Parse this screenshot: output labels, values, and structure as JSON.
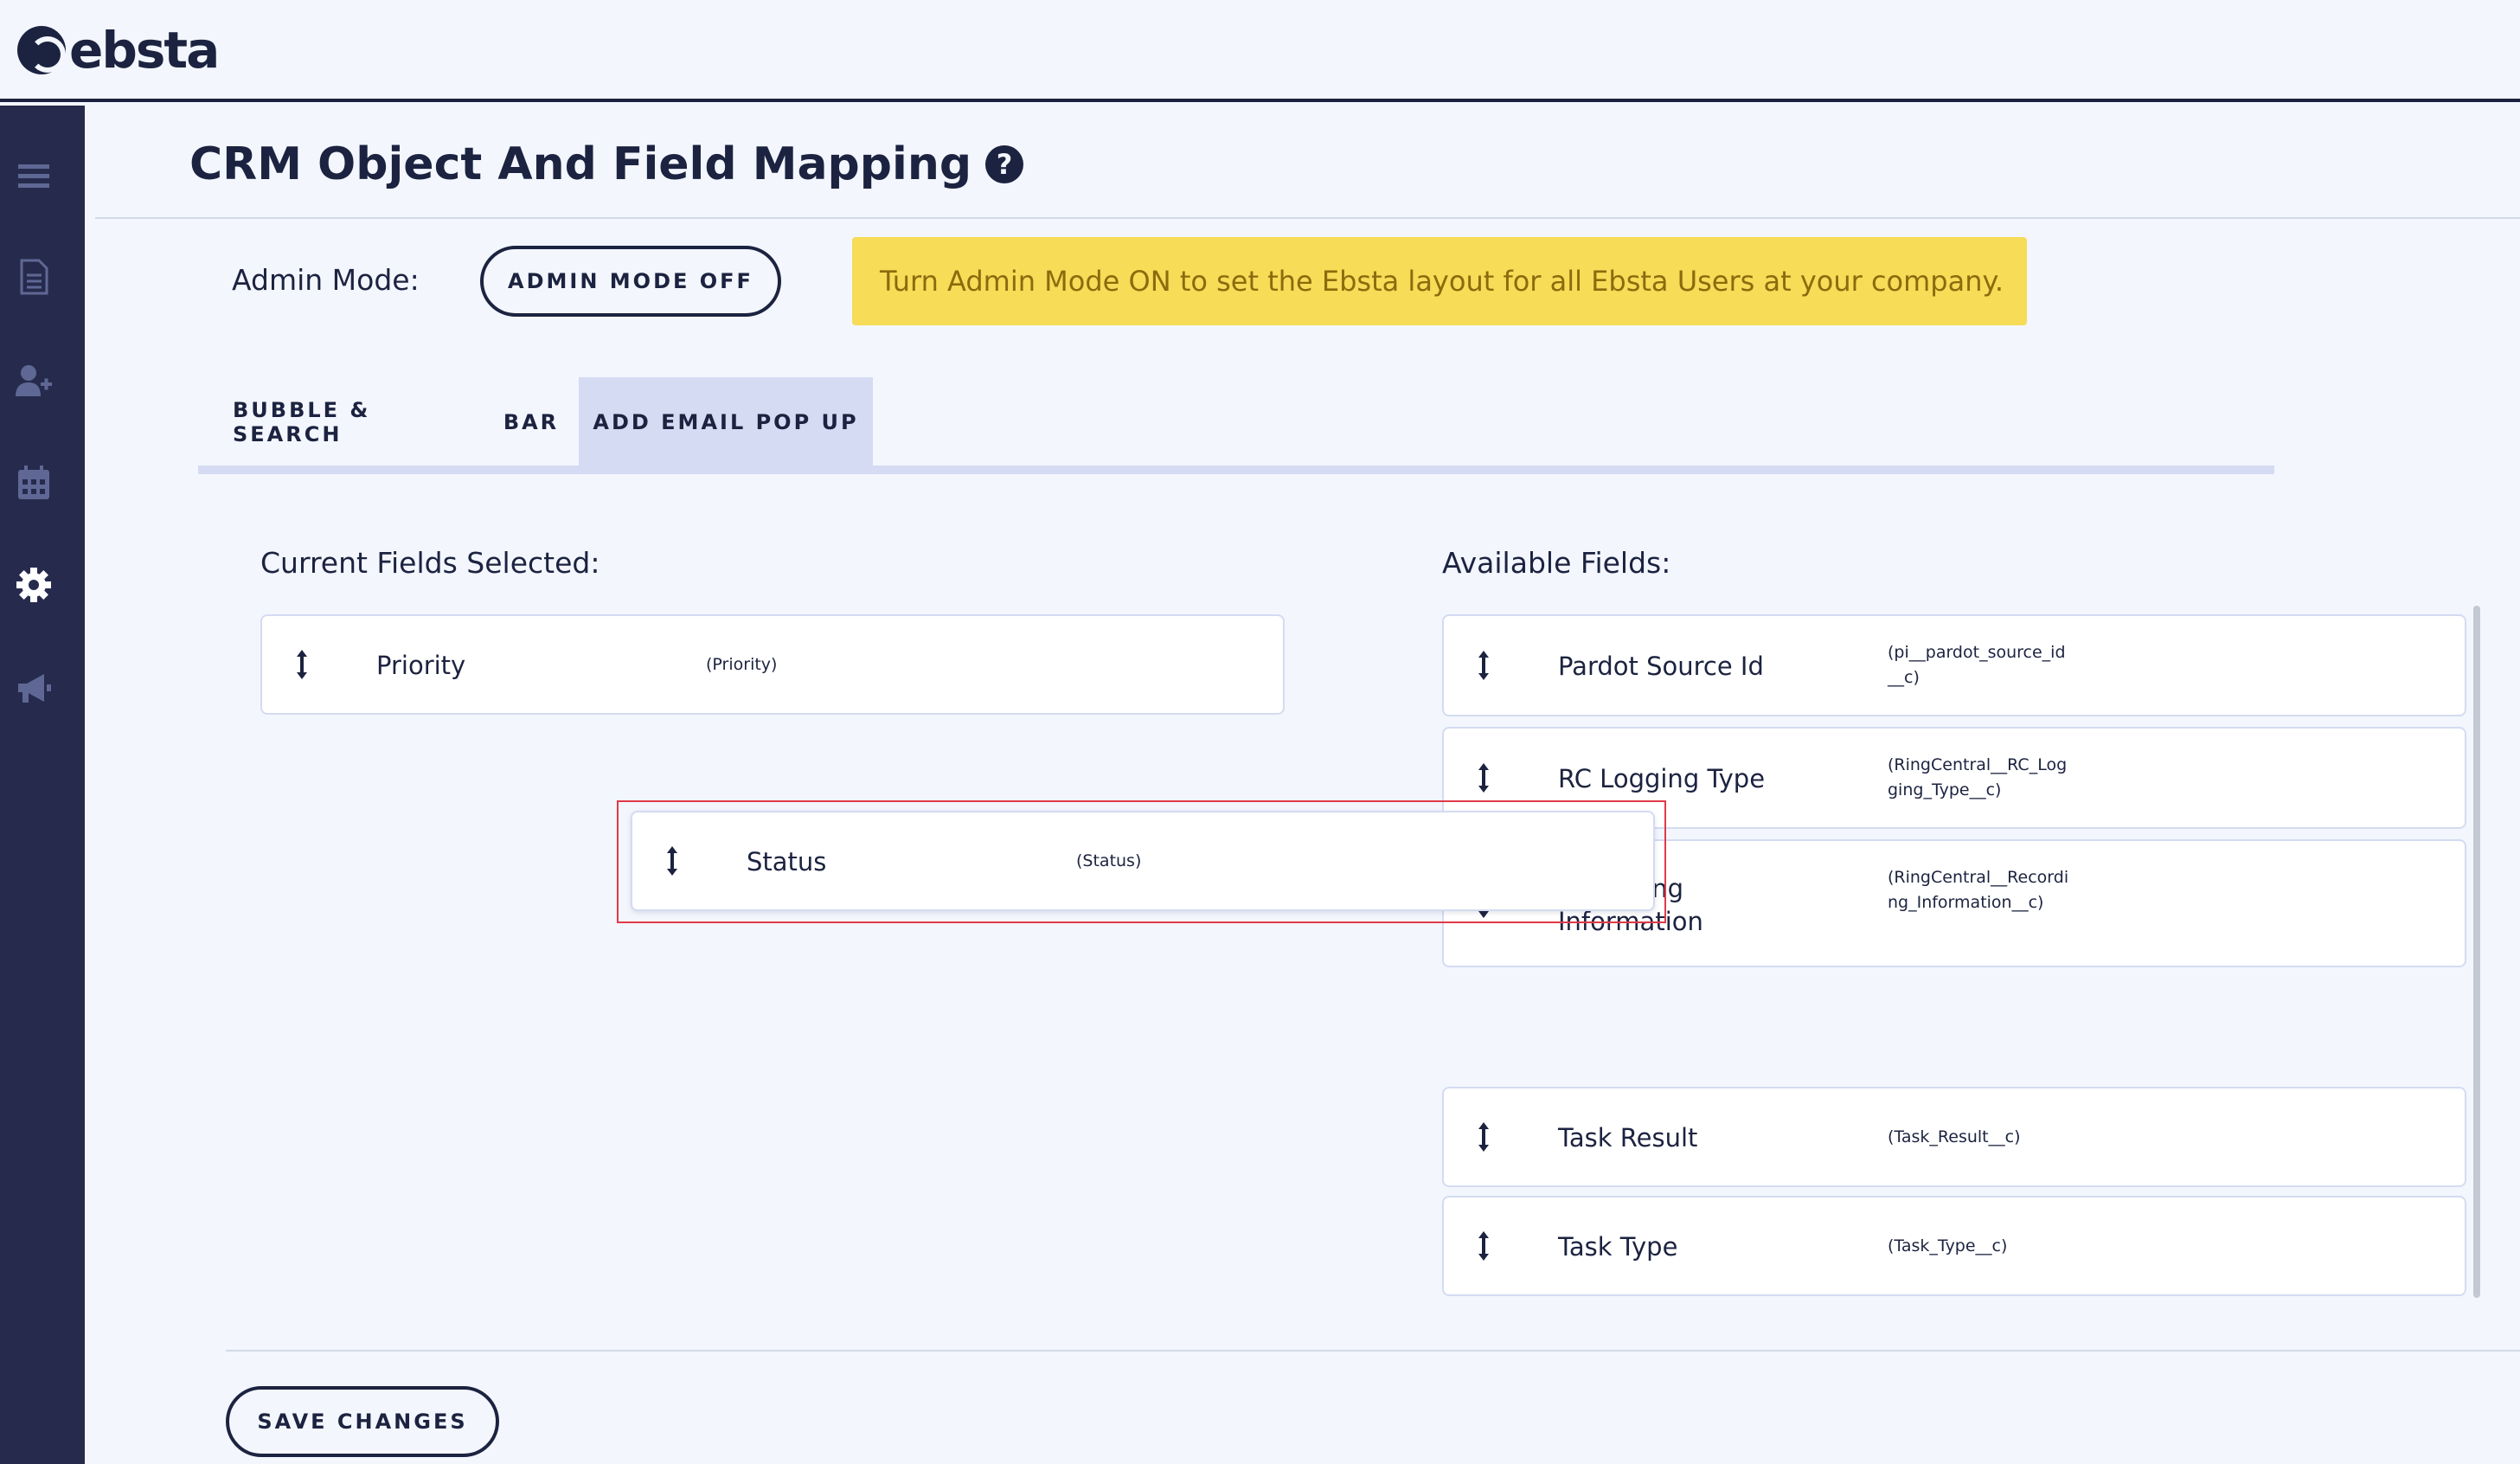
{
  "app": {
    "logo_text": "ebsta"
  },
  "sidebar": {
    "items": [
      {
        "icon": "menu-icon"
      },
      {
        "icon": "document-icon"
      },
      {
        "icon": "add-user-icon"
      },
      {
        "icon": "calendar-icon"
      },
      {
        "icon": "gear-icon"
      },
      {
        "icon": "megaphone-icon"
      }
    ]
  },
  "header": {
    "title": "CRM Object And Field Mapping",
    "help_glyph": "?"
  },
  "admin": {
    "label": "Admin Mode:",
    "button_label": "ADMIN MODE OFF",
    "notice": "Turn Admin Mode ON to set the Ebsta layout for all Ebsta Users at your company."
  },
  "tabs": [
    {
      "label": "BUBBLE & SEARCH",
      "active": false
    },
    {
      "label": "BAR",
      "active": false
    },
    {
      "label": "ADD EMAIL POP UP",
      "active": true
    }
  ],
  "current_fields": {
    "label": "Current Fields Selected:",
    "items": [
      {
        "name": "Priority",
        "api": "(Priority)"
      }
    ]
  },
  "dragging_field": {
    "name": "Status",
    "api": "(Status)"
  },
  "available_fields": {
    "label": "Available Fields:",
    "items": [
      {
        "name": "Pardot Source Id",
        "api": "(pi__pardot_source_id__c)"
      },
      {
        "name": "RC Logging Type",
        "api": "(RingCentral__RC_Logging_Type__c)"
      },
      {
        "name": "Recording Information",
        "api": "(RingCentral__Recording_Information__c)"
      },
      {
        "name": "Task Result",
        "api": "(Task_Result__c)"
      },
      {
        "name": "Task Type",
        "api": "(Task_Type__c)"
      }
    ]
  },
  "footer": {
    "save_label": "SAVE CHANGES"
  },
  "colors": {
    "navy": "#1c2340",
    "sidebar": "#262b4d",
    "notice_bg": "#f6dc57",
    "active_tab": "#d4dbf2",
    "drag_outline": "#e03a48"
  }
}
